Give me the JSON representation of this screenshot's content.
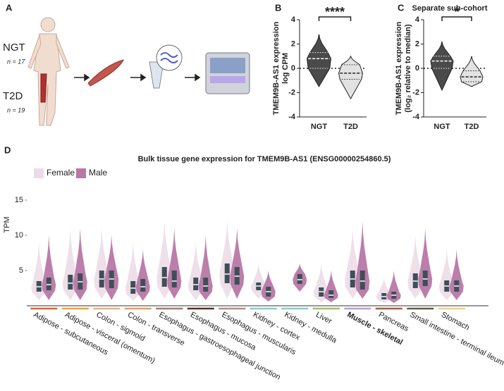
{
  "panel_a": {
    "label": "A",
    "groups": [
      {
        "name": "NGT",
        "n": "n = 17"
      },
      {
        "name": "T2D",
        "n": "n = 19"
      }
    ]
  },
  "chart_data": [
    {
      "type": "violin",
      "panel": "B",
      "ylabel": [
        "TMEM9B-AS1 expression",
        "log CPM"
      ],
      "categories": [
        "NGT",
        "T2D"
      ],
      "colors": [
        "#4a4a4a",
        "#e2e2e2"
      ],
      "min": [
        -1.5,
        -2.5
      ],
      "q1": [
        0,
        -0.9
      ],
      "median": [
        0.8,
        -0.4
      ],
      "q3": [
        1.3,
        0.3
      ],
      "max": [
        2.8,
        1
      ],
      "ylim": [
        -4,
        4
      ],
      "yticks": [
        -4,
        -2,
        0,
        2,
        4
      ],
      "significance": "****",
      "reference_line": 0
    },
    {
      "type": "violin",
      "panel": "C",
      "title": "Separate sub-cohort",
      "ylabel": [
        "TMEM9B-AS1 expression",
        "(log₂ relative to median)"
      ],
      "categories": [
        "NGT",
        "T2D"
      ],
      "colors": [
        "#4a4a4a",
        "#e2e2e2"
      ],
      "min": [
        -1.8,
        -1.5
      ],
      "q1": [
        0,
        -1.1
      ],
      "median": [
        0.6,
        -0.7
      ],
      "q3": [
        1,
        -0.2
      ],
      "max": [
        2.2,
        1
      ],
      "ylim": [
        -4,
        4
      ],
      "yticks": [
        -4,
        -2,
        0,
        2,
        4
      ],
      "significance": "*",
      "reference_line": 0
    },
    {
      "type": "grouped_violin",
      "panel": "D",
      "title": "Bulk tissue gene expression for TMEM9B-AS1 (ENSG00000254860.5)",
      "ylabel": "TPM",
      "ylim": [
        0,
        19
      ],
      "yticks": [
        5,
        10,
        15
      ],
      "legend": "top-left",
      "bold_category": "Muscle - skeletal",
      "categories": [
        "Adipose - subcutaneous",
        "Adipose - visceral (omentum)",
        "Colon - sigmoid",
        "Colon - transverse",
        "Esophagus - gastroesophageal junction",
        "Esophagus - mucosa",
        "Esophagus - muscularis",
        "Kidney - cortex",
        "Kidney - medulla",
        "Liver",
        "Muscle - skeletal",
        "Pancreas",
        "Small intestine - terminal ileum",
        "Stomach"
      ],
      "category_colors": [
        "#e0622a",
        "#f0a030",
        "#e8b080",
        "#e0a060",
        "#a08070",
        "#5a3020",
        "#b09080",
        "#80d0c8",
        "#80d0c8",
        "#a0c060",
        "#b0a0e0",
        "#a06040",
        "#606040",
        "#f0d080"
      ],
      "series": [
        {
          "name": "Female",
          "color": "#ecdbe7",
          "min": [
            0.8,
            0.8,
            1,
            0.7,
            1,
            0.8,
            1,
            1,
            null,
            0.5,
            1,
            0.4,
            1,
            0.8
          ],
          "q1": [
            2,
            2.3,
            2.6,
            1.7,
            2.7,
            2.2,
            3.2,
            2.2,
            null,
            1.3,
            2.6,
            0.9,
            2.5,
            2
          ],
          "median": [
            2.7,
            3.2,
            3.8,
            2.5,
            4,
            3,
            4.5,
            2.8,
            null,
            2,
            3.8,
            1.3,
            3.5,
            2.8
          ],
          "q3": [
            3.5,
            4.4,
            5,
            3.5,
            5.5,
            4,
            6,
            3.3,
            null,
            2.6,
            5,
            1.8,
            4.6,
            3.6
          ],
          "max": [
            9,
            11,
            11,
            9,
            12,
            9,
            12,
            6,
            null,
            6,
            11,
            4,
            10,
            8
          ]
        },
        {
          "name": "Male",
          "color": "#b877a6",
          "min": [
            0.8,
            0.8,
            0.8,
            0.7,
            1,
            0.8,
            1,
            0.6,
            2,
            0.5,
            1,
            0.4,
            1,
            0.8
          ],
          "q1": [
            2.2,
            2.3,
            2.5,
            2,
            2.6,
            2,
            3,
            1.3,
            3.1,
            1.1,
            2.3,
            1,
            2.8,
            2
          ],
          "median": [
            3,
            3.4,
            3.8,
            2.7,
            3.5,
            2.8,
            4.2,
            2,
            3.7,
            1.5,
            3.5,
            1.5,
            3.8,
            2.8
          ],
          "q3": [
            4,
            4.6,
            5,
            3.8,
            5,
            4,
            5.5,
            2.7,
            4.5,
            2.2,
            5,
            2,
            5,
            3.6
          ],
          "max": [
            10,
            11,
            10,
            8,
            11,
            10,
            11,
            5,
            6,
            5,
            12,
            5,
            11,
            8
          ]
        }
      ]
    }
  ]
}
